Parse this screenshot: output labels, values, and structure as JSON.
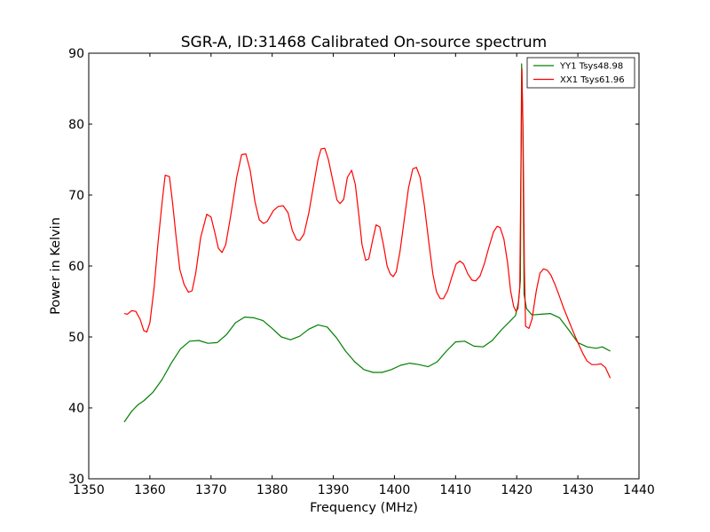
{
  "chart_data": {
    "type": "line",
    "title": "SGR-A, ID:31468 Calibrated On-source spectrum",
    "xlabel": "Frequency (MHz)",
    "ylabel": "Power in Kelvin",
    "xlim": [
      1350,
      1440
    ],
    "ylim": [
      30,
      90
    ],
    "xticks": [
      1350,
      1360,
      1370,
      1380,
      1390,
      1400,
      1410,
      1420,
      1430,
      1440
    ],
    "yticks": [
      30,
      40,
      50,
      60,
      70,
      80,
      90
    ],
    "grid": false,
    "legend_position": "top-right",
    "series": [
      {
        "name": "YY1 Tsys48.98",
        "color": "#008000",
        "points": [
          [
            1355.8,
            38.0
          ],
          [
            1357.0,
            39.5
          ],
          [
            1358.0,
            40.4
          ],
          [
            1359.0,
            41.0
          ],
          [
            1360.5,
            42.2
          ],
          [
            1362.0,
            44.0
          ],
          [
            1363.5,
            46.3
          ],
          [
            1365.0,
            48.3
          ],
          [
            1366.5,
            49.4
          ],
          [
            1368.0,
            49.5
          ],
          [
            1369.5,
            49.1
          ],
          [
            1371.0,
            49.2
          ],
          [
            1372.5,
            50.3
          ],
          [
            1374.0,
            52.0
          ],
          [
            1375.5,
            52.8
          ],
          [
            1377.0,
            52.7
          ],
          [
            1378.5,
            52.3
          ],
          [
            1380.0,
            51.2
          ],
          [
            1381.5,
            50.0
          ],
          [
            1383.0,
            49.6
          ],
          [
            1384.5,
            50.1
          ],
          [
            1386.0,
            51.1
          ],
          [
            1387.5,
            51.7
          ],
          [
            1389.0,
            51.4
          ],
          [
            1390.5,
            49.9
          ],
          [
            1392.0,
            48.0
          ],
          [
            1393.5,
            46.5
          ],
          [
            1395.0,
            45.4
          ],
          [
            1396.5,
            45.0
          ],
          [
            1398.0,
            45.0
          ],
          [
            1399.5,
            45.4
          ],
          [
            1401.0,
            46.0
          ],
          [
            1402.5,
            46.3
          ],
          [
            1404.0,
            46.1
          ],
          [
            1405.5,
            45.8
          ],
          [
            1407.0,
            46.5
          ],
          [
            1408.5,
            48.0
          ],
          [
            1410.0,
            49.3
          ],
          [
            1411.5,
            49.4
          ],
          [
            1413.0,
            48.7
          ],
          [
            1414.5,
            48.6
          ],
          [
            1416.0,
            49.5
          ],
          [
            1417.5,
            51.0
          ],
          [
            1419.0,
            52.3
          ],
          [
            1419.8,
            53.0
          ],
          [
            1420.3,
            55.0
          ],
          [
            1420.6,
            58.0
          ],
          [
            1420.8,
            88.5
          ],
          [
            1421.0,
            80.0
          ],
          [
            1421.2,
            56.0
          ],
          [
            1421.6,
            54.0
          ],
          [
            1422.5,
            53.1
          ],
          [
            1424.0,
            53.2
          ],
          [
            1425.5,
            53.3
          ],
          [
            1427.0,
            52.7
          ],
          [
            1428.5,
            51.0
          ],
          [
            1430.0,
            49.2
          ],
          [
            1431.5,
            48.6
          ],
          [
            1433.0,
            48.4
          ],
          [
            1434.0,
            48.6
          ],
          [
            1435.3,
            48.0
          ]
        ]
      },
      {
        "name": "XX1 Tsys61.96",
        "color": "#ff0000",
        "points": [
          [
            1355.8,
            53.3
          ],
          [
            1356.3,
            53.2
          ],
          [
            1357.0,
            53.7
          ],
          [
            1357.7,
            53.6
          ],
          [
            1358.4,
            52.5
          ],
          [
            1359.0,
            50.9
          ],
          [
            1359.5,
            50.7
          ],
          [
            1360.0,
            52.0
          ],
          [
            1360.7,
            57.0
          ],
          [
            1361.3,
            63.0
          ],
          [
            1362.0,
            69.0
          ],
          [
            1362.5,
            72.8
          ],
          [
            1363.2,
            72.6
          ],
          [
            1363.7,
            69.0
          ],
          [
            1364.3,
            64.0
          ],
          [
            1364.9,
            59.5
          ],
          [
            1365.6,
            57.4
          ],
          [
            1366.3,
            56.3
          ],
          [
            1366.9,
            56.5
          ],
          [
            1367.5,
            59.0
          ],
          [
            1368.3,
            64.0
          ],
          [
            1369.3,
            67.3
          ],
          [
            1370.0,
            66.9
          ],
          [
            1370.6,
            64.8
          ],
          [
            1371.2,
            62.5
          ],
          [
            1371.8,
            61.9
          ],
          [
            1372.4,
            63.0
          ],
          [
            1373.2,
            67.0
          ],
          [
            1374.2,
            72.5
          ],
          [
            1375.0,
            75.7
          ],
          [
            1375.7,
            75.8
          ],
          [
            1376.4,
            73.5
          ],
          [
            1377.2,
            69.0
          ],
          [
            1377.9,
            66.5
          ],
          [
            1378.6,
            66.0
          ],
          [
            1379.2,
            66.3
          ],
          [
            1380.2,
            67.8
          ],
          [
            1381.0,
            68.4
          ],
          [
            1381.8,
            68.5
          ],
          [
            1382.6,
            67.5
          ],
          [
            1383.3,
            65.0
          ],
          [
            1384.0,
            63.7
          ],
          [
            1384.5,
            63.6
          ],
          [
            1385.2,
            64.5
          ],
          [
            1386.0,
            67.5
          ],
          [
            1386.8,
            71.5
          ],
          [
            1387.5,
            75.0
          ],
          [
            1388.0,
            76.5
          ],
          [
            1388.6,
            76.6
          ],
          [
            1389.2,
            75.0
          ],
          [
            1390.0,
            71.7
          ],
          [
            1390.6,
            69.3
          ],
          [
            1391.1,
            68.8
          ],
          [
            1391.7,
            69.4
          ],
          [
            1392.3,
            72.5
          ],
          [
            1393.0,
            73.5
          ],
          [
            1393.6,
            71.5
          ],
          [
            1394.2,
            67.0
          ],
          [
            1394.7,
            63.0
          ],
          [
            1395.3,
            60.8
          ],
          [
            1395.8,
            61.0
          ],
          [
            1396.4,
            63.5
          ],
          [
            1397.0,
            65.8
          ],
          [
            1397.6,
            65.5
          ],
          [
            1398.2,
            63.0
          ],
          [
            1398.8,
            60.0
          ],
          [
            1399.3,
            58.9
          ],
          [
            1399.8,
            58.5
          ],
          [
            1400.3,
            59.2
          ],
          [
            1400.9,
            62.0
          ],
          [
            1401.6,
            66.5
          ],
          [
            1402.3,
            71.0
          ],
          [
            1403.0,
            73.7
          ],
          [
            1403.6,
            73.9
          ],
          [
            1404.2,
            72.5
          ],
          [
            1404.9,
            68.5
          ],
          [
            1405.6,
            63.5
          ],
          [
            1406.3,
            58.8
          ],
          [
            1406.9,
            56.3
          ],
          [
            1407.5,
            55.4
          ],
          [
            1408.0,
            55.4
          ],
          [
            1408.7,
            56.5
          ],
          [
            1409.4,
            58.5
          ],
          [
            1410.1,
            60.3
          ],
          [
            1410.7,
            60.7
          ],
          [
            1411.3,
            60.3
          ],
          [
            1412.0,
            58.9
          ],
          [
            1412.7,
            58.0
          ],
          [
            1413.3,
            57.9
          ],
          [
            1414.0,
            58.6
          ],
          [
            1414.7,
            60.3
          ],
          [
            1415.4,
            62.5
          ],
          [
            1416.2,
            64.8
          ],
          [
            1416.8,
            65.6
          ],
          [
            1417.3,
            65.4
          ],
          [
            1417.9,
            63.8
          ],
          [
            1418.5,
            60.5
          ],
          [
            1419.0,
            56.5
          ],
          [
            1419.5,
            54.3
          ],
          [
            1419.9,
            53.6
          ],
          [
            1420.2,
            54.0
          ],
          [
            1420.5,
            57.0
          ],
          [
            1420.7,
            75.0
          ],
          [
            1420.85,
            87.8
          ],
          [
            1421.05,
            78.0
          ],
          [
            1421.25,
            60.0
          ],
          [
            1421.45,
            51.5
          ],
          [
            1422.0,
            51.2
          ],
          [
            1422.5,
            52.5
          ],
          [
            1423.2,
            56.5
          ],
          [
            1423.8,
            59.0
          ],
          [
            1424.4,
            59.6
          ],
          [
            1425.0,
            59.4
          ],
          [
            1425.6,
            58.7
          ],
          [
            1426.3,
            57.3
          ],
          [
            1427.0,
            55.7
          ],
          [
            1427.7,
            54.0
          ],
          [
            1428.5,
            52.3
          ],
          [
            1429.3,
            50.6
          ],
          [
            1430.0,
            49.2
          ],
          [
            1430.8,
            47.7
          ],
          [
            1431.5,
            46.6
          ],
          [
            1432.3,
            46.1
          ],
          [
            1433.0,
            46.1
          ],
          [
            1433.8,
            46.2
          ],
          [
            1434.5,
            45.7
          ],
          [
            1435.3,
            44.2
          ]
        ]
      }
    ]
  }
}
